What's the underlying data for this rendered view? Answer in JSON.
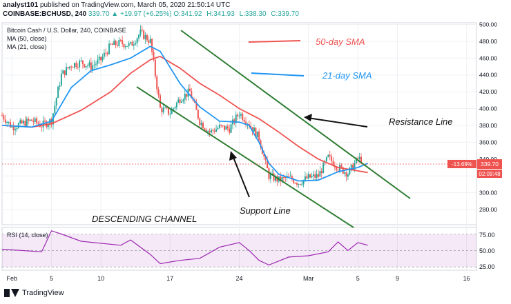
{
  "header": {
    "user": "analyst101",
    "published": "published on TradingView.com, March 05, 2020 21:50:14 UTC",
    "symbol": "COINBASE:BCHUSD, 240",
    "last": "339.70",
    "change": "▲ +19.97 (+6.25%)",
    "open": "O:341.92",
    "high": "H:341.93",
    "low": "L:338.30",
    "close": "C:339.70"
  },
  "legend": {
    "title": "Bitcoin Cash / U.S. Dollar, 240, COINBASE",
    "ma50": "MA (50, close)",
    "ma21": "MA (21, close)"
  },
  "annotations": {
    "sma50": "50-day SMA",
    "sma21": "21-day SMA",
    "resistance": "Resistance Line",
    "support": "Support Line",
    "channel": "DESCENDING CHANNEL"
  },
  "price_badge": {
    "pct": "-13.69%",
    "price": "339.70",
    "timer": "02:09:48"
  },
  "rsi": {
    "label": "RSI (14, close)",
    "ticks": [
      "75.00",
      "50.00",
      "25.00"
    ]
  },
  "footer": {
    "brand": "TradingView"
  },
  "colors": {
    "up": "#26a69a",
    "down": "#ef5350",
    "sma50": "#ef5350",
    "sma21": "#2196f3",
    "channel": "#2e7d32",
    "rsi": "#9c27b0"
  },
  "chart_data": {
    "type": "line",
    "xlabel": "",
    "ylabel": "",
    "ylim": [
      262,
      502
    ],
    "y_ticks": [
      500,
      480,
      460,
      440,
      420,
      400,
      380,
      360,
      340,
      320,
      300,
      280
    ],
    "x_ticks": [
      "Feb",
      "5",
      "10",
      "17",
      "24",
      "Mar",
      "5",
      "9",
      "16"
    ],
    "x_tick_days": [
      1,
      5,
      10,
      17,
      24,
      31,
      36,
      40,
      47
    ],
    "xlim_days": [
      0,
      48
    ],
    "series": [
      {
        "name": "Bitcoin Cash / U.S. Dollar, 240, COINBASE",
        "points": [
          [
            0,
            392
          ],
          [
            1,
            378
          ],
          [
            2,
            382
          ],
          [
            3,
            386
          ],
          [
            4,
            380
          ],
          [
            5,
            386
          ],
          [
            6,
            440
          ],
          [
            7,
            452
          ],
          [
            8,
            455
          ],
          [
            9,
            450
          ],
          [
            10,
            458
          ],
          [
            11,
            475
          ],
          [
            12,
            478
          ],
          [
            13,
            475
          ],
          [
            14,
            490
          ],
          [
            15,
            480
          ],
          [
            16,
            400
          ],
          [
            17,
            395
          ],
          [
            18,
            412
          ],
          [
            19,
            420
          ],
          [
            20,
            385
          ],
          [
            21,
            372
          ],
          [
            22,
            378
          ],
          [
            23,
            376
          ],
          [
            24,
            395
          ],
          [
            25,
            382
          ],
          [
            26,
            365
          ],
          [
            27,
            320
          ],
          [
            28,
            315
          ],
          [
            29,
            318
          ],
          [
            30,
            312
          ],
          [
            31,
            318
          ],
          [
            32,
            320
          ],
          [
            33,
            342
          ],
          [
            34,
            330
          ],
          [
            35,
            323
          ],
          [
            36,
            340
          ],
          [
            36.5,
            339.7
          ]
        ]
      },
      {
        "name": "MA (50, close)",
        "points": [
          [
            0,
            380
          ],
          [
            3,
            378
          ],
          [
            5,
            382
          ],
          [
            8,
            398
          ],
          [
            11,
            420
          ],
          [
            13,
            442
          ],
          [
            15,
            458
          ],
          [
            16,
            462
          ],
          [
            18,
            448
          ],
          [
            20,
            430
          ],
          [
            22,
            416
          ],
          [
            24,
            400
          ],
          [
            26,
            388
          ],
          [
            28,
            372
          ],
          [
            30,
            355
          ],
          [
            32,
            340
          ],
          [
            34,
            330
          ],
          [
            36,
            326
          ],
          [
            37,
            324
          ]
        ]
      },
      {
        "name": "MA (21, close)",
        "points": [
          [
            0,
            380
          ],
          [
            3,
            378
          ],
          [
            5,
            385
          ],
          [
            7,
            425
          ],
          [
            9,
            445
          ],
          [
            11,
            452
          ],
          [
            13,
            460
          ],
          [
            15,
            474
          ],
          [
            16,
            468
          ],
          [
            18,
            430
          ],
          [
            20,
            402
          ],
          [
            22,
            385
          ],
          [
            24,
            384
          ],
          [
            25,
            380
          ],
          [
            26,
            360
          ],
          [
            27,
            335
          ],
          [
            28,
            322
          ],
          [
            30,
            314
          ],
          [
            32,
            315
          ],
          [
            34,
            325
          ],
          [
            36,
            330
          ],
          [
            37,
            335
          ]
        ]
      }
    ],
    "rsi_series": [
      [
        0,
        52
      ],
      [
        4,
        48
      ],
      [
        5,
        80
      ],
      [
        6,
        75
      ],
      [
        8,
        64
      ],
      [
        12,
        58
      ],
      [
        13,
        66
      ],
      [
        15,
        44
      ],
      [
        16,
        30
      ],
      [
        18,
        35
      ],
      [
        20,
        38
      ],
      [
        22,
        55
      ],
      [
        24,
        62
      ],
      [
        25,
        50
      ],
      [
        26,
        35
      ],
      [
        27,
        28
      ],
      [
        29,
        40
      ],
      [
        31,
        42
      ],
      [
        33,
        48
      ],
      [
        34,
        63
      ],
      [
        35,
        50
      ],
      [
        36,
        62
      ],
      [
        37,
        58
      ]
    ],
    "rsi_ylim": [
      20,
      85
    ]
  }
}
